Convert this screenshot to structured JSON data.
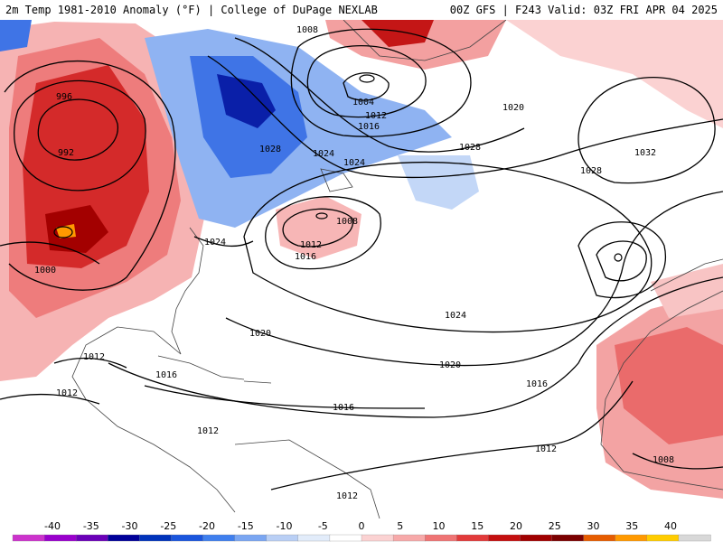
{
  "header": {
    "left": "2m Temp 1981-2010 Anomaly (°F) | College of DuPage NEXLAB",
    "right": "00Z GFS | F243 Valid: 03Z FRI APR 04 2025"
  },
  "isobars": [
    "1008",
    "996",
    "992",
    "1004",
    "1012",
    "1016",
    "1028",
    "1024",
    "1020",
    "1028",
    "1032",
    "1028",
    "1024",
    "1008",
    "1012",
    "1016",
    "1000",
    "1024",
    "1024",
    "1020",
    "1020",
    "1012",
    "1016",
    "1012",
    "1016",
    "1016",
    "1012",
    "1012",
    "1012",
    "1008"
  ],
  "colorbar": {
    "labels": [
      "-40",
      "-35",
      "-30",
      "-25",
      "-20",
      "-15",
      "-10",
      "-5",
      "0",
      "5",
      "10",
      "15",
      "20",
      "25",
      "30",
      "35",
      "40"
    ],
    "colors": [
      "#cc33cc",
      "#9900cc",
      "#6a00b8",
      "#000099",
      "#0033bb",
      "#1a55dd",
      "#3f7fee",
      "#7aa6f2",
      "#b9cff5",
      "#e2ecfa",
      "#ffffff",
      "#fbd2d2",
      "#f7a9a9",
      "#ef7474",
      "#e23a3a",
      "#c40f0f",
      "#a00000",
      "#7a0000",
      "#e65c00",
      "#ff9900",
      "#ffcc00",
      "#d8d8d8"
    ]
  }
}
